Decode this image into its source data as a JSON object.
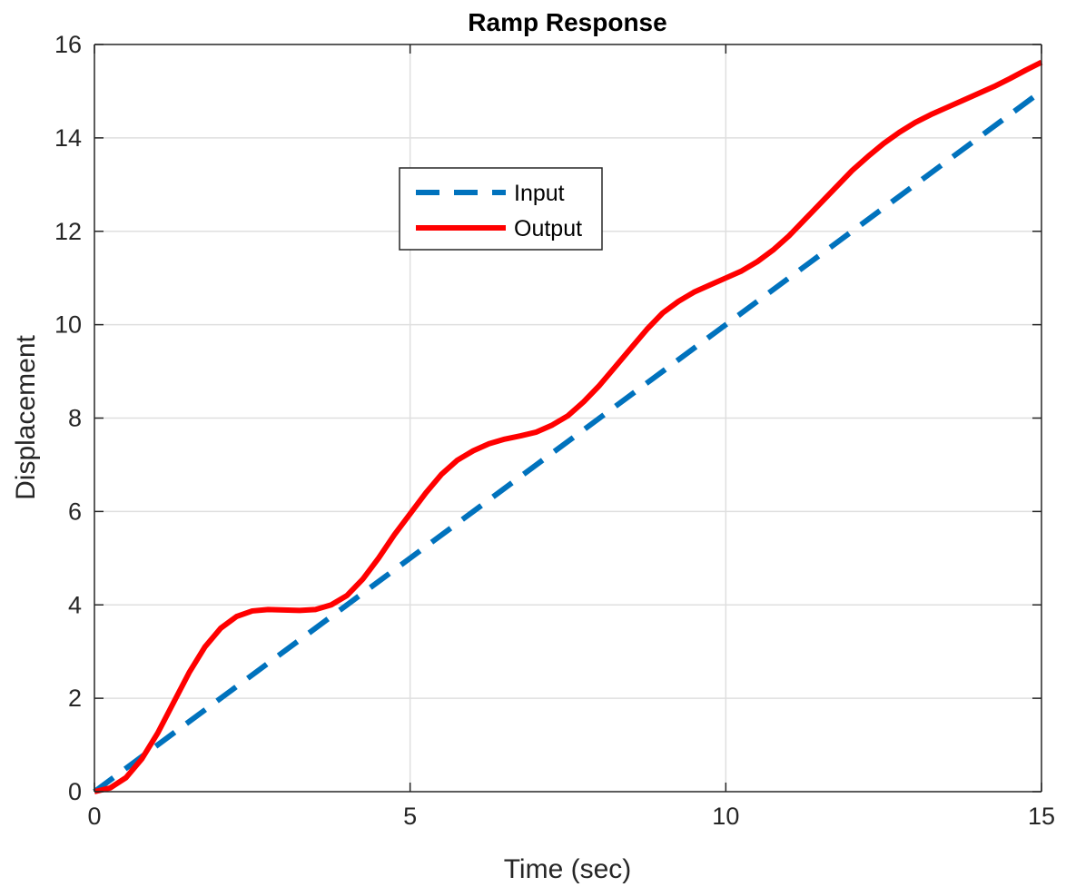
{
  "chart_data": {
    "type": "line",
    "title": "Ramp Response",
    "xlabel": "Time (sec)",
    "ylabel": "Displacement",
    "xlim": [
      0,
      15
    ],
    "ylim": [
      0,
      16
    ],
    "xticks": [
      0,
      5,
      10,
      15
    ],
    "yticks": [
      0,
      2,
      4,
      6,
      8,
      10,
      12,
      14,
      16
    ],
    "grid": true,
    "legend_position": "upper-center",
    "series": [
      {
        "name": "Input",
        "style": "dashed",
        "color": "#0072BD",
        "x": [
          0,
          15
        ],
        "y": [
          0,
          15
        ]
      },
      {
        "name": "Output",
        "style": "solid",
        "color": "#FF0000",
        "x": [
          0,
          0.25,
          0.5,
          0.75,
          1.0,
          1.25,
          1.5,
          1.75,
          2.0,
          2.25,
          2.5,
          2.75,
          3.0,
          3.25,
          3.5,
          3.75,
          4.0,
          4.25,
          4.5,
          4.75,
          5.0,
          5.25,
          5.5,
          5.75,
          6.0,
          6.25,
          6.5,
          6.75,
          7.0,
          7.25,
          7.5,
          7.75,
          8.0,
          8.25,
          8.5,
          8.75,
          9.0,
          9.25,
          9.5,
          9.75,
          10.0,
          10.25,
          10.5,
          10.75,
          11.0,
          11.25,
          11.5,
          11.75,
          12.0,
          12.25,
          12.5,
          12.75,
          13.0,
          13.25,
          13.5,
          13.75,
          14.0,
          14.25,
          14.5,
          14.75,
          15.0
        ],
        "y": [
          0,
          0.08,
          0.3,
          0.7,
          1.25,
          1.9,
          2.55,
          3.1,
          3.5,
          3.75,
          3.87,
          3.9,
          3.89,
          3.88,
          3.9,
          4.0,
          4.2,
          4.55,
          5.0,
          5.5,
          5.95,
          6.4,
          6.8,
          7.1,
          7.3,
          7.45,
          7.55,
          7.62,
          7.7,
          7.85,
          8.05,
          8.35,
          8.7,
          9.1,
          9.5,
          9.9,
          10.25,
          10.5,
          10.7,
          10.85,
          11.0,
          11.15,
          11.35,
          11.6,
          11.9,
          12.25,
          12.6,
          12.95,
          13.3,
          13.6,
          13.88,
          14.12,
          14.33,
          14.5,
          14.65,
          14.8,
          14.95,
          15.1,
          15.27,
          15.45,
          15.62
        ]
      }
    ]
  }
}
